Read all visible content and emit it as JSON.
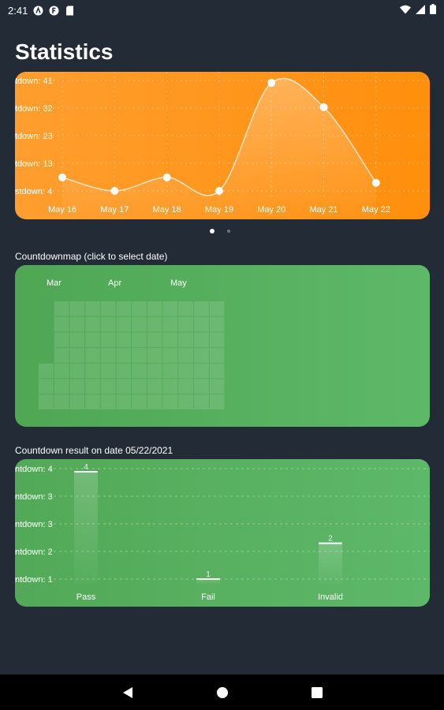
{
  "status_bar": {
    "time": "2:41",
    "icons": [
      "a-circle-icon",
      "f-badge-icon",
      "sd-card-icon",
      "wifi-icon",
      "signal-icon",
      "battery-icon"
    ]
  },
  "title": "Statistics",
  "colors": {
    "background": "#222b36",
    "line_card": "#ff9a1f",
    "heatmap_card": "#56ae5c",
    "bar_card": "#58b160"
  },
  "pager": {
    "pages": 2,
    "active": 0
  },
  "line_chart": {
    "y_tick_labels": [
      "tdown: 41",
      "tdown: 32",
      "tdown: 23",
      "tdown: 13",
      "stdown: 4"
    ]
  },
  "heatmap": {
    "label": "Countdownmap (click to select date)",
    "months": [
      "Mar",
      "Apr",
      "May"
    ]
  },
  "bar_chart": {
    "label": "Countdown result on date 05/22/2021",
    "y_tick_labels": [
      "ntdown: 4",
      "ntdown: 3",
      "ntdown: 3",
      "ntdown: 2",
      "ntdown: 1"
    ]
  },
  "chart_data": [
    {
      "type": "line",
      "categories": [
        "May 16",
        "May 17",
        "May 18",
        "May 19",
        "May 20",
        "May 21",
        "May 22"
      ],
      "values": [
        6,
        1,
        6,
        1,
        41,
        32,
        4
      ],
      "title": "",
      "xlabel": "",
      "ylabel": "",
      "ylim": [
        4,
        41
      ],
      "grid": true,
      "curve": "smooth"
    },
    {
      "type": "bar",
      "categories": [
        "Pass",
        "Fail",
        "Invalid"
      ],
      "values": [
        4,
        1,
        2
      ],
      "data_labels": [
        "4",
        "1",
        "2"
      ],
      "title": "",
      "xlabel": "",
      "ylabel": "",
      "ylim": [
        1,
        4
      ],
      "grid": true
    }
  ],
  "navigation": [
    "back-icon",
    "home-icon",
    "recents-icon"
  ]
}
